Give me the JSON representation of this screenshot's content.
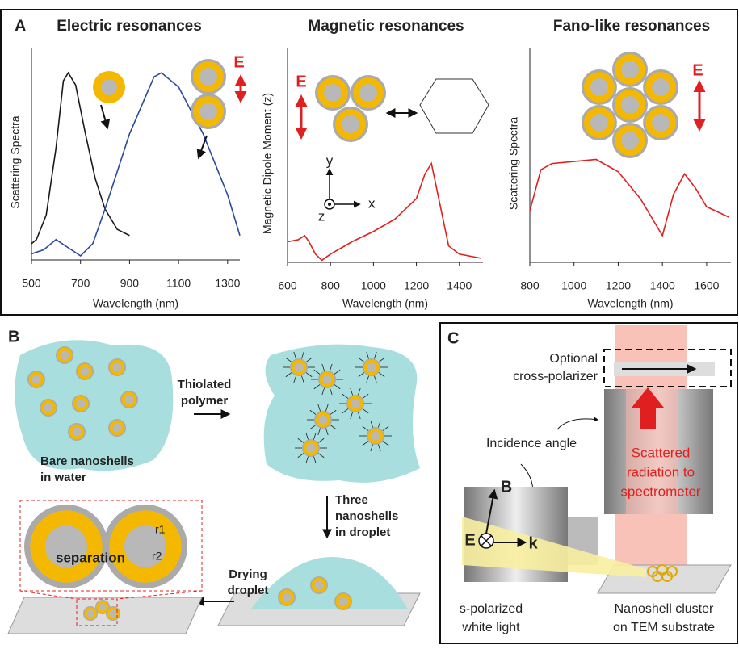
{
  "panel_labels": [
    "A",
    "B",
    "C"
  ],
  "chart_data": [
    {
      "type": "line",
      "title": "Electric resonances",
      "x_label": "Wavelength (nm)",
      "y_label": "Scattering Spectra",
      "xlim": [
        500,
        1350
      ],
      "ylim": [
        0,
        1
      ],
      "xticks": [
        500,
        700,
        900,
        1100,
        1300
      ],
      "series": [
        {
          "color": "#1a1a1a",
          "x": [
            500,
            520,
            560,
            600,
            630,
            650,
            680,
            720,
            760,
            800,
            850,
            900
          ],
          "values": [
            0.08,
            0.1,
            0.22,
            0.55,
            0.88,
            0.92,
            0.86,
            0.62,
            0.4,
            0.25,
            0.15,
            0.12
          ]
        },
        {
          "color": "#2a4a9a",
          "x": [
            500,
            550,
            600,
            650,
            700,
            750,
            800,
            900,
            1000,
            1030,
            1100,
            1200,
            1300,
            1350
          ],
          "values": [
            0.03,
            0.05,
            0.1,
            0.06,
            0.02,
            0.08,
            0.25,
            0.62,
            0.9,
            0.92,
            0.85,
            0.62,
            0.32,
            0.12
          ]
        }
      ],
      "annotations": [
        "E"
      ]
    },
    {
      "type": "line",
      "title": "Magnetic resonances",
      "x_label": "Wavelength (nm)",
      "y_label": "Magnetic Dipole Moment (z)",
      "xlim": [
        600,
        1510
      ],
      "ylim": [
        0,
        1
      ],
      "xticks": [
        600,
        800,
        1000,
        1200,
        1400
      ],
      "series": [
        {
          "color": "#e02020",
          "x": [
            600,
            650,
            680,
            700,
            730,
            760,
            800,
            900,
            1000,
            1100,
            1200,
            1240,
            1270,
            1300,
            1350,
            1400,
            1500
          ],
          "values": [
            0.1,
            0.11,
            0.13,
            0.1,
            0.04,
            0.01,
            0.04,
            0.1,
            0.15,
            0.21,
            0.31,
            0.43,
            0.48,
            0.33,
            0.08,
            0.04,
            0.02
          ]
        }
      ],
      "annotations": [
        "E",
        "x",
        "y",
        "z"
      ]
    },
    {
      "type": "line",
      "title": "Fano-like resonances",
      "x_label": "Wavelength (nm)",
      "y_label": "Scattering Spectra",
      "xlim": [
        800,
        1710
      ],
      "ylim": [
        0,
        1
      ],
      "xticks": [
        800,
        1000,
        1200,
        1400,
        1600
      ],
      "series": [
        {
          "color": "#e02020",
          "x": [
            800,
            850,
            900,
            1000,
            1100,
            1200,
            1300,
            1350,
            1400,
            1450,
            1500,
            1550,
            1600,
            1700
          ],
          "values": [
            0.25,
            0.45,
            0.48,
            0.49,
            0.5,
            0.44,
            0.31,
            0.22,
            0.13,
            0.33,
            0.43,
            0.36,
            0.27,
            0.22
          ]
        }
      ],
      "annotations": [
        "E"
      ]
    }
  ],
  "panel_b": {
    "bare": [
      "Bare nanoshells",
      "in water"
    ],
    "thiolated": [
      "Thiolated",
      "polymer"
    ],
    "three": [
      "Three",
      "nanoshells",
      "in droplet"
    ],
    "drying": [
      "Drying",
      "droplet"
    ],
    "separation": "separation",
    "r1": "r1",
    "r2": "r2"
  },
  "panel_c": {
    "optional": [
      "Optional",
      "cross-polarizer"
    ],
    "incidence": "Incidence angle",
    "scattered": [
      "Scattered",
      "radiation to",
      "spectrometer"
    ],
    "b": "B",
    "e": "E",
    "k": "k",
    "source": [
      "s-polarized",
      "white light"
    ],
    "cluster": [
      "Nanoshell cluster",
      "on TEM substrate"
    ]
  }
}
